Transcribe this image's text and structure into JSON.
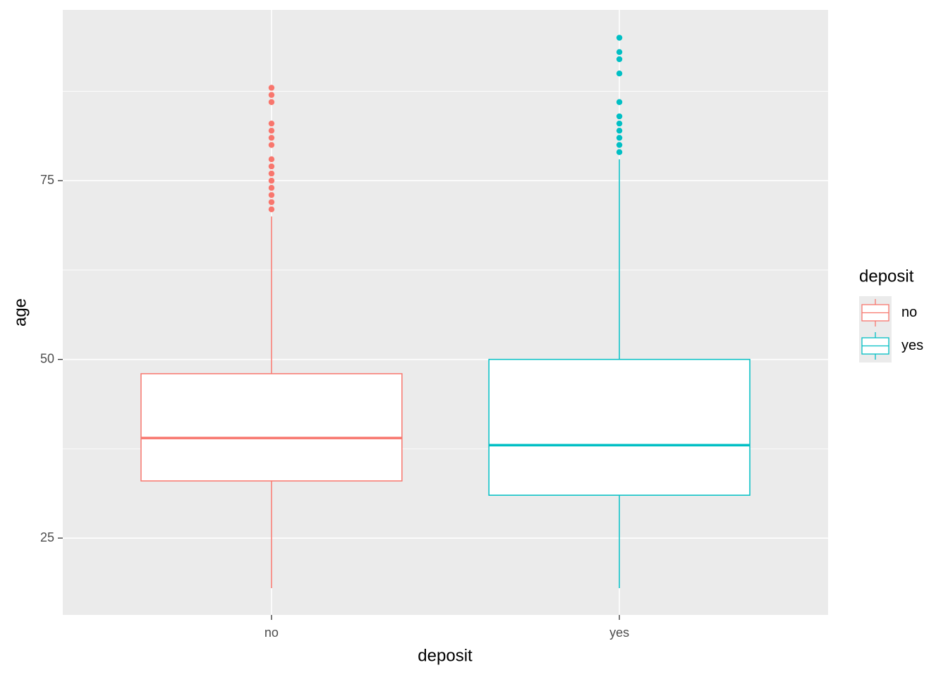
{
  "chart_data": {
    "type": "box",
    "x_label": "deposit",
    "y_label": "age",
    "legend_title": "deposit",
    "categories": [
      "no",
      "yes"
    ],
    "ylim": [
      14.25,
      98.9
    ],
    "yticks": [
      25,
      50,
      75
    ],
    "grid": true,
    "legend": "right",
    "series": [
      {
        "name": "no",
        "color": "#F8766D",
        "values": {
          "min": 18,
          "q1": 33,
          "median": 39,
          "q3": 48,
          "max": 70,
          "outliers": [
            88,
            87,
            86,
            83,
            82,
            81,
            80,
            78,
            77,
            76,
            75,
            74,
            73,
            72,
            71
          ]
        }
      },
      {
        "name": "yes",
        "color": "#00BFC4",
        "values": {
          "min": 18,
          "q1": 31,
          "median": 38,
          "q3": 50,
          "max": 78,
          "outliers": [
            95,
            93,
            92,
            90,
            86,
            84,
            83,
            82,
            81,
            80,
            79
          ]
        }
      }
    ]
  }
}
